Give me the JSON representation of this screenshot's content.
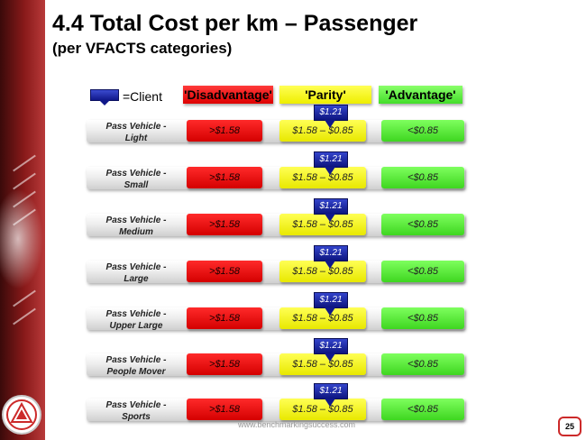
{
  "title": "4.4 Total Cost per km – Passenger",
  "subtitle": "(per VFACTS categories)",
  "legend": {
    "client_label": "=Client",
    "disadvantage": "'Disadvantage'",
    "parity": "'Parity'",
    "advantage": "'Advantage'"
  },
  "rows": [
    {
      "label_line1": "Pass Vehicle -",
      "label_line2": "Light",
      "disadvantage": ">$1.58",
      "parity": "$1.58 – $0.85",
      "advantage": "<$0.85",
      "client_value": "$1.21"
    },
    {
      "label_line1": "Pass Vehicle -",
      "label_line2": "Small",
      "disadvantage": ">$1.58",
      "parity": "$1.58 – $0.85",
      "advantage": "<$0.85",
      "client_value": "$1.21"
    },
    {
      "label_line1": "Pass Vehicle -",
      "label_line2": "Medium",
      "disadvantage": ">$1.58",
      "parity": "$1.58 – $0.85",
      "advantage": "<$0.85",
      "client_value": "$1.21"
    },
    {
      "label_line1": "Pass Vehicle -",
      "label_line2": "Large",
      "disadvantage": ">$1.58",
      "parity": "$1.58 – $0.85",
      "advantage": "<$0.85",
      "client_value": "$1.21"
    },
    {
      "label_line1": "Pass Vehicle -",
      "label_line2": "Upper Large",
      "disadvantage": ">$1.58",
      "parity": "$1.58 – $0.85",
      "advantage": "<$0.85",
      "client_value": "$1.21"
    },
    {
      "label_line1": "Pass Vehicle -",
      "label_line2": "People Mover",
      "disadvantage": ">$1.58",
      "parity": "$1.58 – $0.85",
      "advantage": "<$0.85",
      "client_value": "$1.21"
    },
    {
      "label_line1": "Pass Vehicle -",
      "label_line2": "Sports",
      "disadvantage": ">$1.58",
      "parity": "$1.58 – $0.85",
      "advantage": "<$0.85",
      "client_value": "$1.21"
    }
  ],
  "footer": {
    "url": "www.benchmarkingsuccess.com",
    "page_number": "25"
  },
  "colors": {
    "disadvantage": "#ff0000",
    "parity": "#ffff00",
    "advantage": "#66ff44",
    "client_marker": "#10188a",
    "accent": "#8a1a1a"
  },
  "icons": {
    "client_marker": "client-marker-icon",
    "logo": "logo-icon"
  }
}
